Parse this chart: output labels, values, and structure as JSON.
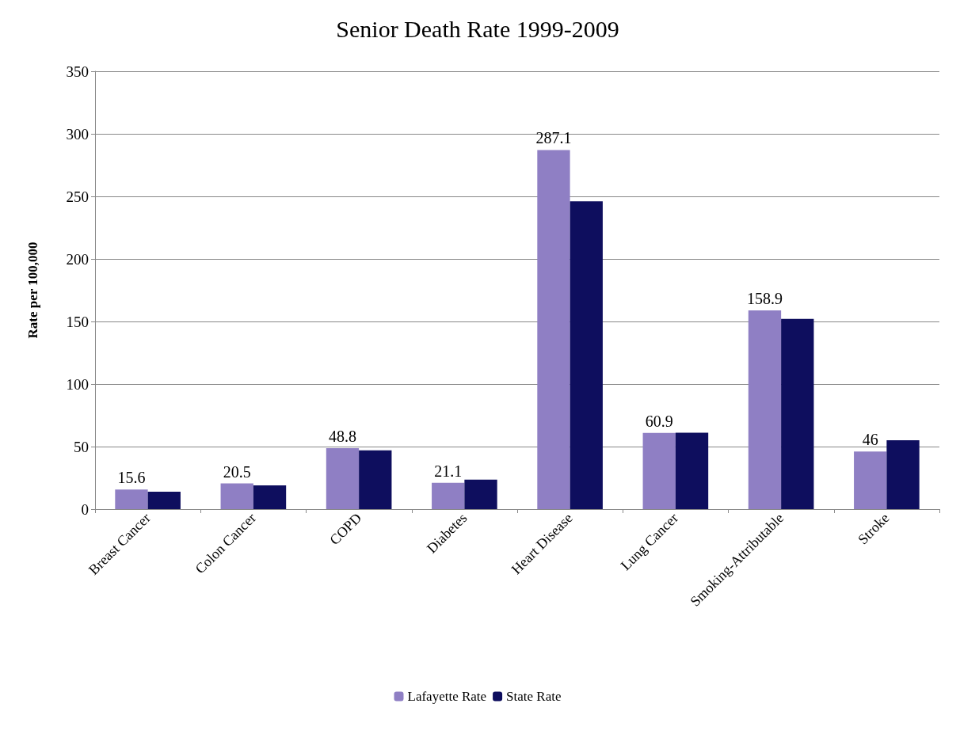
{
  "chart_data": {
    "type": "bar",
    "title": "Senior Death Rate 1999-2009",
    "ylabel": "Rate per 100,000",
    "categories": [
      "Breast Cancer",
      "Colon Cancer",
      "COPD",
      "Diabetes",
      "Heart Disease",
      "Lung Cancer",
      "Smoking-Attributable",
      "Stroke"
    ],
    "series": [
      {
        "name": "Lafayette Rate",
        "color": "#8f7fc4",
        "values": [
          15.6,
          20.5,
          48.8,
          21.1,
          287.1,
          60.9,
          158.9,
          46
        ],
        "value_labels": [
          "15.6",
          "20.5",
          "48.8",
          "21.1",
          "287.1",
          "60.9",
          "158.9",
          "46"
        ]
      },
      {
        "name": "State Rate",
        "color": "#0e0e5e",
        "values": [
          14,
          19,
          47,
          23.5,
          246,
          61,
          152,
          55
        ]
      }
    ],
    "ylim": [
      0,
      350
    ],
    "yticks": [
      0,
      50,
      100,
      150,
      200,
      250,
      300,
      350
    ],
    "grid": "y",
    "legend": "bottom"
  }
}
